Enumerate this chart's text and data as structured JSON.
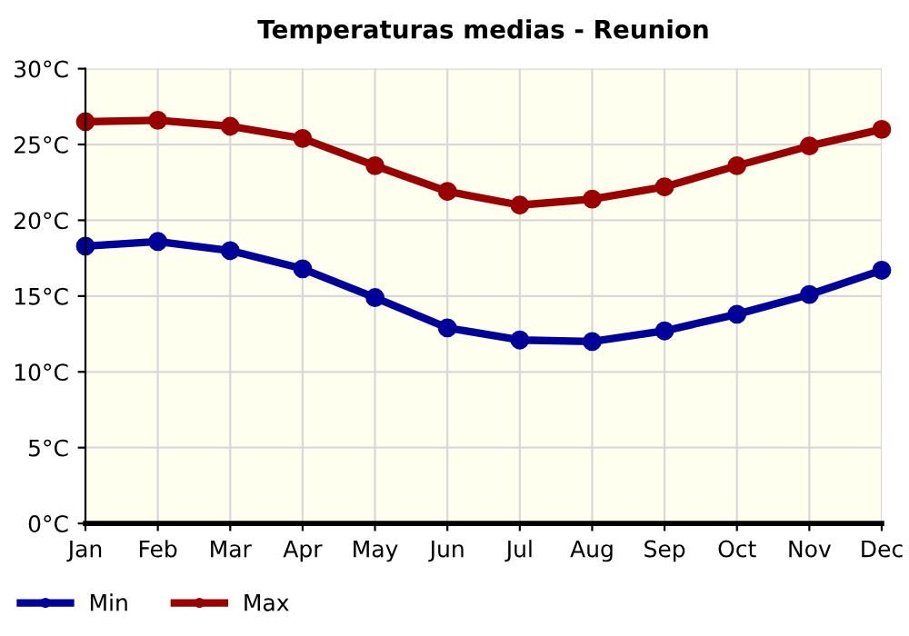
{
  "chart_data": {
    "type": "line",
    "title": "Temperaturas medias - Reunion",
    "categories": [
      "Jan",
      "Feb",
      "Mar",
      "Apr",
      "May",
      "Jun",
      "Jul",
      "Aug",
      "Sep",
      "Oct",
      "Nov",
      "Dec"
    ],
    "series": [
      {
        "name": "Min",
        "color": "#000099",
        "values": [
          18.3,
          18.6,
          18.0,
          16.8,
          14.9,
          12.9,
          12.1,
          12.0,
          12.7,
          13.8,
          15.1,
          16.7
        ]
      },
      {
        "name": "Max",
        "color": "#990000",
        "values": [
          26.5,
          26.6,
          26.2,
          25.4,
          23.6,
          21.9,
          21.0,
          21.4,
          22.2,
          23.6,
          24.9,
          26.0
        ]
      }
    ],
    "ylim": [
      0,
      30
    ],
    "yticks": [
      {
        "value": 0,
        "label": "0°C"
      },
      {
        "value": 5,
        "label": "5°C"
      },
      {
        "value": 10,
        "label": "10°C"
      },
      {
        "value": 15,
        "label": "15°C"
      },
      {
        "value": 20,
        "label": "20°C"
      },
      {
        "value": 25,
        "label": "25°C"
      },
      {
        "value": 30,
        "label": "30°C"
      }
    ],
    "grid": true,
    "legend": "bottom left",
    "marker": "circle",
    "line_style": "solid"
  }
}
